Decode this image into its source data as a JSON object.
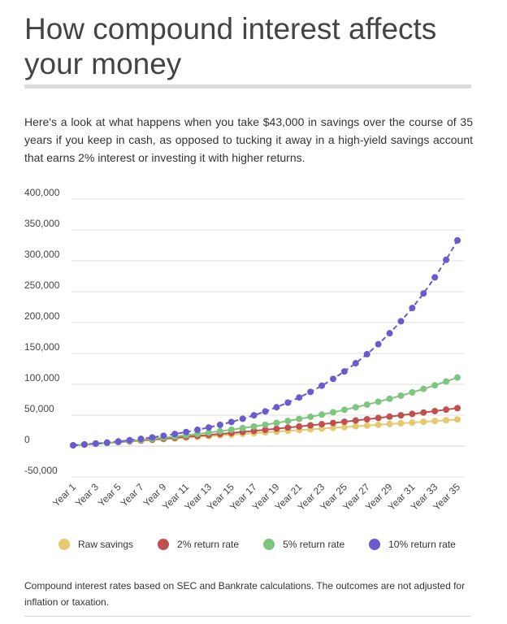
{
  "header": {
    "title": "How compound interest affects your money",
    "intro": "Here's a look at what happens when you take $43,000 in savings over the course of 35 years if you keep in cash, as opposed to tucking it away in a high-yield savings account that earns 2% interest or investing it with higher returns."
  },
  "legend": [
    {
      "label": "Raw savings",
      "color": "#e6c86e"
    },
    {
      "label": "2% return rate",
      "color": "#c0504d"
    },
    {
      "label": "5% return rate",
      "color": "#7dc67e"
    },
    {
      "label": "10% return rate",
      "color": "#6a5acd"
    }
  ],
  "footer": {
    "note": "Compound interest rates based on SEC and Bankrate calculations. The outcomes are not adjusted for inflation or taxation."
  },
  "chart_data": {
    "type": "line",
    "title": "",
    "xlabel": "",
    "ylabel": "",
    "ylim": [
      -50000,
      400000
    ],
    "yticks": [
      400000,
      350000,
      300000,
      250000,
      200000,
      150000,
      100000,
      50000,
      0,
      -50000
    ],
    "ytick_labels": [
      "400,000",
      "350,000",
      "300,000",
      "250,000",
      "200,000",
      "150,000",
      "100,000",
      "50,000",
      "0",
      "-50,000"
    ],
    "grid": true,
    "legend_position": "bottom",
    "x": [
      "Year 1",
      "Year 2",
      "Year 3",
      "Year 4",
      "Year 5",
      "Year 6",
      "Year 7",
      "Year 8",
      "Year 9",
      "Year 10",
      "Year 11",
      "Year 12",
      "Year 13",
      "Year 14",
      "Year 15",
      "Year 16",
      "Year 17",
      "Year 18",
      "Year 19",
      "Year 20",
      "Year 21",
      "Year 22",
      "Year 23",
      "Year 24",
      "Year 25",
      "Year 26",
      "Year 27",
      "Year 28",
      "Year 29",
      "Year 30",
      "Year 31",
      "Year 32",
      "Year 33",
      "Year 34",
      "Year 35"
    ],
    "x_tick_labels": [
      "Year 1",
      "Year 3",
      "Year 5",
      "Year 7",
      "Year 9",
      "Year 11",
      "Year 13",
      "Year 15",
      "Year 17",
      "Year 19",
      "Year 21",
      "Year 23",
      "Year 25",
      "Year 27",
      "Year 29",
      "Year 31",
      "Year 33",
      "Year 35"
    ],
    "series": [
      {
        "name": "Raw savings",
        "color": "#e6c86e",
        "dashed": false,
        "values": [
          1229,
          2457,
          3686,
          4914,
          6143,
          7371,
          8600,
          9829,
          11057,
          12286,
          13514,
          14743,
          15971,
          17200,
          18429,
          19657,
          20886,
          22114,
          23343,
          24571,
          25800,
          27029,
          28257,
          29486,
          30714,
          31943,
          33171,
          34400,
          35629,
          36857,
          38086,
          39314,
          40543,
          41771,
          43000
        ]
      },
      {
        "name": "2% return rate",
        "color": "#c0504d",
        "dashed": false,
        "values": [
          1229,
          2482,
          3760,
          5064,
          6394,
          7751,
          9136,
          10547,
          11987,
          13455,
          14953,
          16481,
          18039,
          19629,
          21250,
          22904,
          24591,
          26311,
          28066,
          29856,
          31682,
          33545,
          35444,
          37382,
          39358,
          41374,
          43430,
          45527,
          47666,
          49848,
          52073,
          54343,
          56659,
          59020,
          61429
        ]
      },
      {
        "name": "5% return rate",
        "color": "#7dc67e",
        "dashed": false,
        "values": [
          1229,
          2519,
          3874,
          5297,
          6791,
          8359,
          10006,
          11736,
          13551,
          15458,
          17459,
          19561,
          21768,
          24085,
          26518,
          29073,
          31755,
          34572,
          37529,
          40635,
          43895,
          47319,
          50914,
          54689,
          58652,
          62813,
          67183,
          71771,
          76589,
          81647,
          86958,
          92535,
          98391,
          104539,
          110995
        ]
      },
      {
        "name": "10% return rate",
        "color": "#6a5acd",
        "dashed": true,
        "values": [
          1229,
          2580,
          4067,
          5703,
          7502,
          9481,
          11658,
          14053,
          16687,
          19584,
          22772,
          26278,
          30135,
          34377,
          39044,
          44178,
          49824,
          56036,
          62868,
          70384,
          78651,
          87745,
          97749,
          108753,
          120857,
          134171,
          148817,
          164928,
          182650,
          202143,
          223587,
          247174,
          273121,
          301662,
          333058
        ]
      }
    ]
  }
}
